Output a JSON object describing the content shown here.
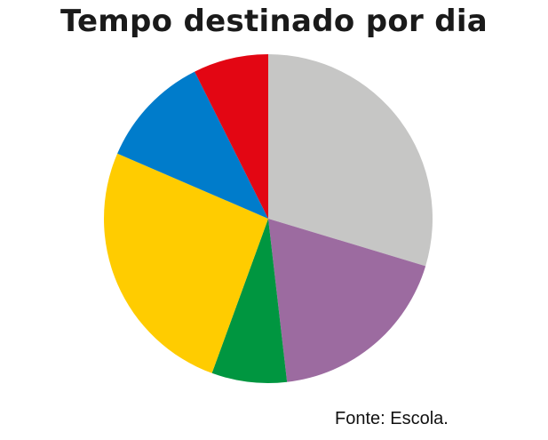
{
  "chart_data": {
    "type": "pie",
    "title": "Tempo destinado por dia",
    "source": "Fonte: Escola.",
    "start_angle_deg": 0,
    "direction": "clockwise",
    "slices": [
      {
        "value": 33.3,
        "color": "#c6c6c5"
      },
      {
        "value": 20.8,
        "color": "#9c6ba0"
      },
      {
        "value": 8.3,
        "color": "#009640"
      },
      {
        "value": 20.8,
        "color": "#ffcc00"
      },
      {
        "value": 8.3,
        "color": "#ffcc00",
        "merge_with_previous": true
      },
      {
        "value": 12.5,
        "color": "#007ccb"
      },
      {
        "value": 8.3,
        "color": "#e30613"
      }
    ]
  }
}
